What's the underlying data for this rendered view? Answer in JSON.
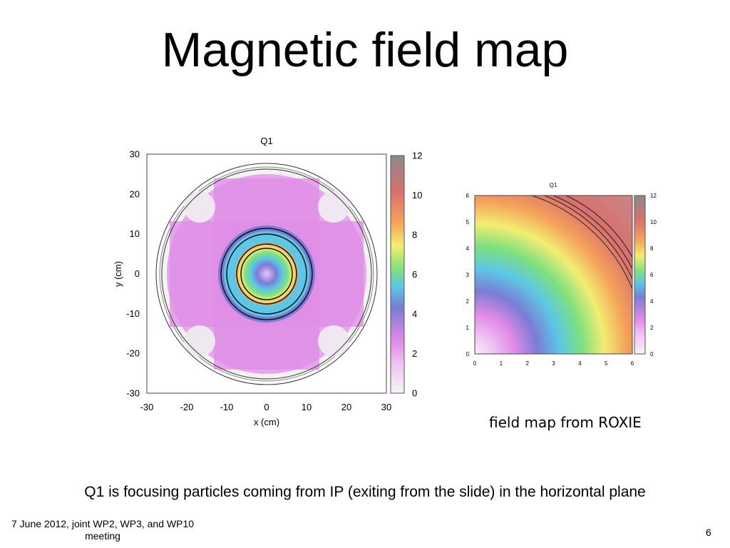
{
  "slide": {
    "title": "Magnetic field map",
    "caption": "field map from ROXIE",
    "statement": "Q1 is focusing particles coming from IP (exiting from the slide) in the horizontal plane",
    "footer": "7 June 2012, joint WP2, WP3, and WP10 meeting",
    "page_number": "6"
  },
  "chart_data": [
    {
      "type": "heatmap",
      "title": "Q1",
      "xlabel": "x (cm)",
      "ylabel": "y (cm)",
      "xlim": [
        -30,
        30
      ],
      "ylim": [
        -30,
        30
      ],
      "xticks": [
        "-30",
        "-20",
        "-10",
        "0",
        "10",
        "20",
        "30"
      ],
      "yticks": [
        "-30",
        "-20",
        "-10",
        "0",
        "10",
        "20",
        "30"
      ],
      "colorbar": {
        "min": 0,
        "max": 12,
        "ticks": [
          "0",
          "2",
          "4",
          "6",
          "8",
          "10",
          "12"
        ]
      },
      "colorscale": [
        "#f2f2f2",
        "#e08ae6",
        "#7a7cd6",
        "#5cc7e6",
        "#7ee07e",
        "#f2ee72",
        "#f5a25a",
        "#d8706e",
        "#8a8a8a"
      ],
      "grid": false
    },
    {
      "type": "heatmap",
      "title": "Q1",
      "xlim": [
        0,
        6
      ],
      "ylim": [
        0,
        6
      ],
      "xticks": [
        "0",
        "1",
        "2",
        "3",
        "4",
        "5",
        "6"
      ],
      "yticks": [
        "0",
        "1",
        "2",
        "3",
        "4",
        "5",
        "6"
      ],
      "colorbar": {
        "min": 0,
        "max": 12,
        "ticks": [
          "0",
          "2",
          "4",
          "6",
          "8",
          "10",
          "12"
        ]
      },
      "colorscale": [
        "#f2f2f2",
        "#e08ae6",
        "#7a7cd6",
        "#5cc7e6",
        "#7ee07e",
        "#f2ee72",
        "#f5a25a",
        "#d8706e",
        "#8a8a8a"
      ],
      "grid": false
    }
  ]
}
